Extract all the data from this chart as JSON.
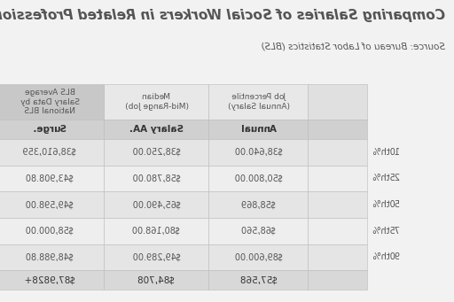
{
  "title": "Comparing Salaries of Social Workers in Related Professions",
  "subtitle": "Source: Bureau of Labor Statistics (BLS)",
  "col_header_labels": [
    "Job Percentile\n(Annual Salary)",
    "Median\n(Mid-Range Job)",
    "BLS Average\nSalary Data by\nNational BLS"
  ],
  "sub_headers": [
    "Annual",
    "Salary AA.",
    "Surge."
  ],
  "row_labels": [
    "10th%",
    "25th%",
    "50th%",
    "75th%",
    "90th%"
  ],
  "data": [
    [
      "$38,640.00",
      "$38,250.00",
      "$38,610,359"
    ],
    [
      "$50,800.00",
      "$58,780.00",
      "$43,908.80"
    ],
    [
      "$58,869",
      "$65,490.00",
      "$49,598.00"
    ],
    [
      "$68,560",
      "$80,168.00",
      "$58,000.00"
    ],
    [
      "$89,600.00",
      "$49,289.00",
      "$48,988.80"
    ]
  ],
  "totals": [
    "$57,568",
    "$84,708",
    "$87,9828+"
  ],
  "bg_color": "#f2f2f2",
  "header_bg_1": "#e0e0e0",
  "header_bg_2": "#e8e8e8",
  "header_bg_3": "#c8c8c8",
  "sub_header_bg": "#d0d0d0",
  "row_odd_bg": "#e5e5e5",
  "row_even_bg": "#eeeeee",
  "total_bg": "#d8d8d8",
  "border_color": "#bbbbbb",
  "text_color": "#555555",
  "text_color_dark": "#333333",
  "title_fontsize": 11,
  "subtitle_fontsize": 7.5,
  "header_fontsize": 6.5,
  "cell_fontsize": 7,
  "sub_header_fontsize": 7.5
}
